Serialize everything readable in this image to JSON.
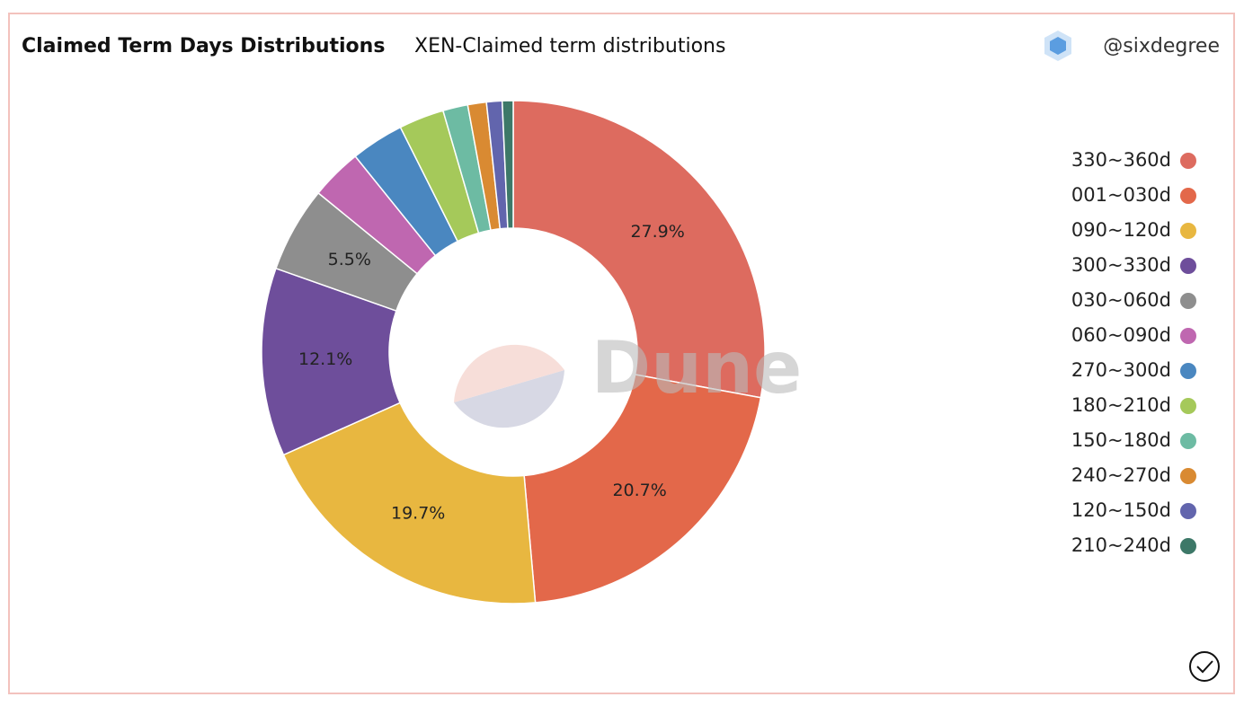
{
  "chart_data": {
    "type": "pie",
    "title": "Claimed Term Days Distributions",
    "subtitle": "XEN-Claimed term distributions",
    "author": "@sixdegree",
    "watermark": "Dune",
    "categories": [
      "330~360d",
      "001~030d",
      "090~120d",
      "300~330d",
      "030~060d",
      "060~090d",
      "270~300d",
      "180~210d",
      "150~180d",
      "240~270d",
      "120~150d",
      "210~240d"
    ],
    "values": [
      27.9,
      20.7,
      19.7,
      12.1,
      5.5,
      3.3,
      3.4,
      2.9,
      1.6,
      1.2,
      1.0,
      0.7
    ],
    "value_labels": [
      "27.9%",
      "20.7%",
      "19.7%",
      "12.1%",
      "5.5%",
      null,
      null,
      null,
      null,
      null,
      null,
      null
    ],
    "colors": [
      "#dd6b5f",
      "#e3684a",
      "#e8b740",
      "#6e4e9b",
      "#8e8e8e",
      "#bf67b0",
      "#4a87c0",
      "#a5c95a",
      "#6dbba3",
      "#d98a32",
      "#6265ad",
      "#3d7868"
    ],
    "donut": true,
    "legend": "right"
  }
}
